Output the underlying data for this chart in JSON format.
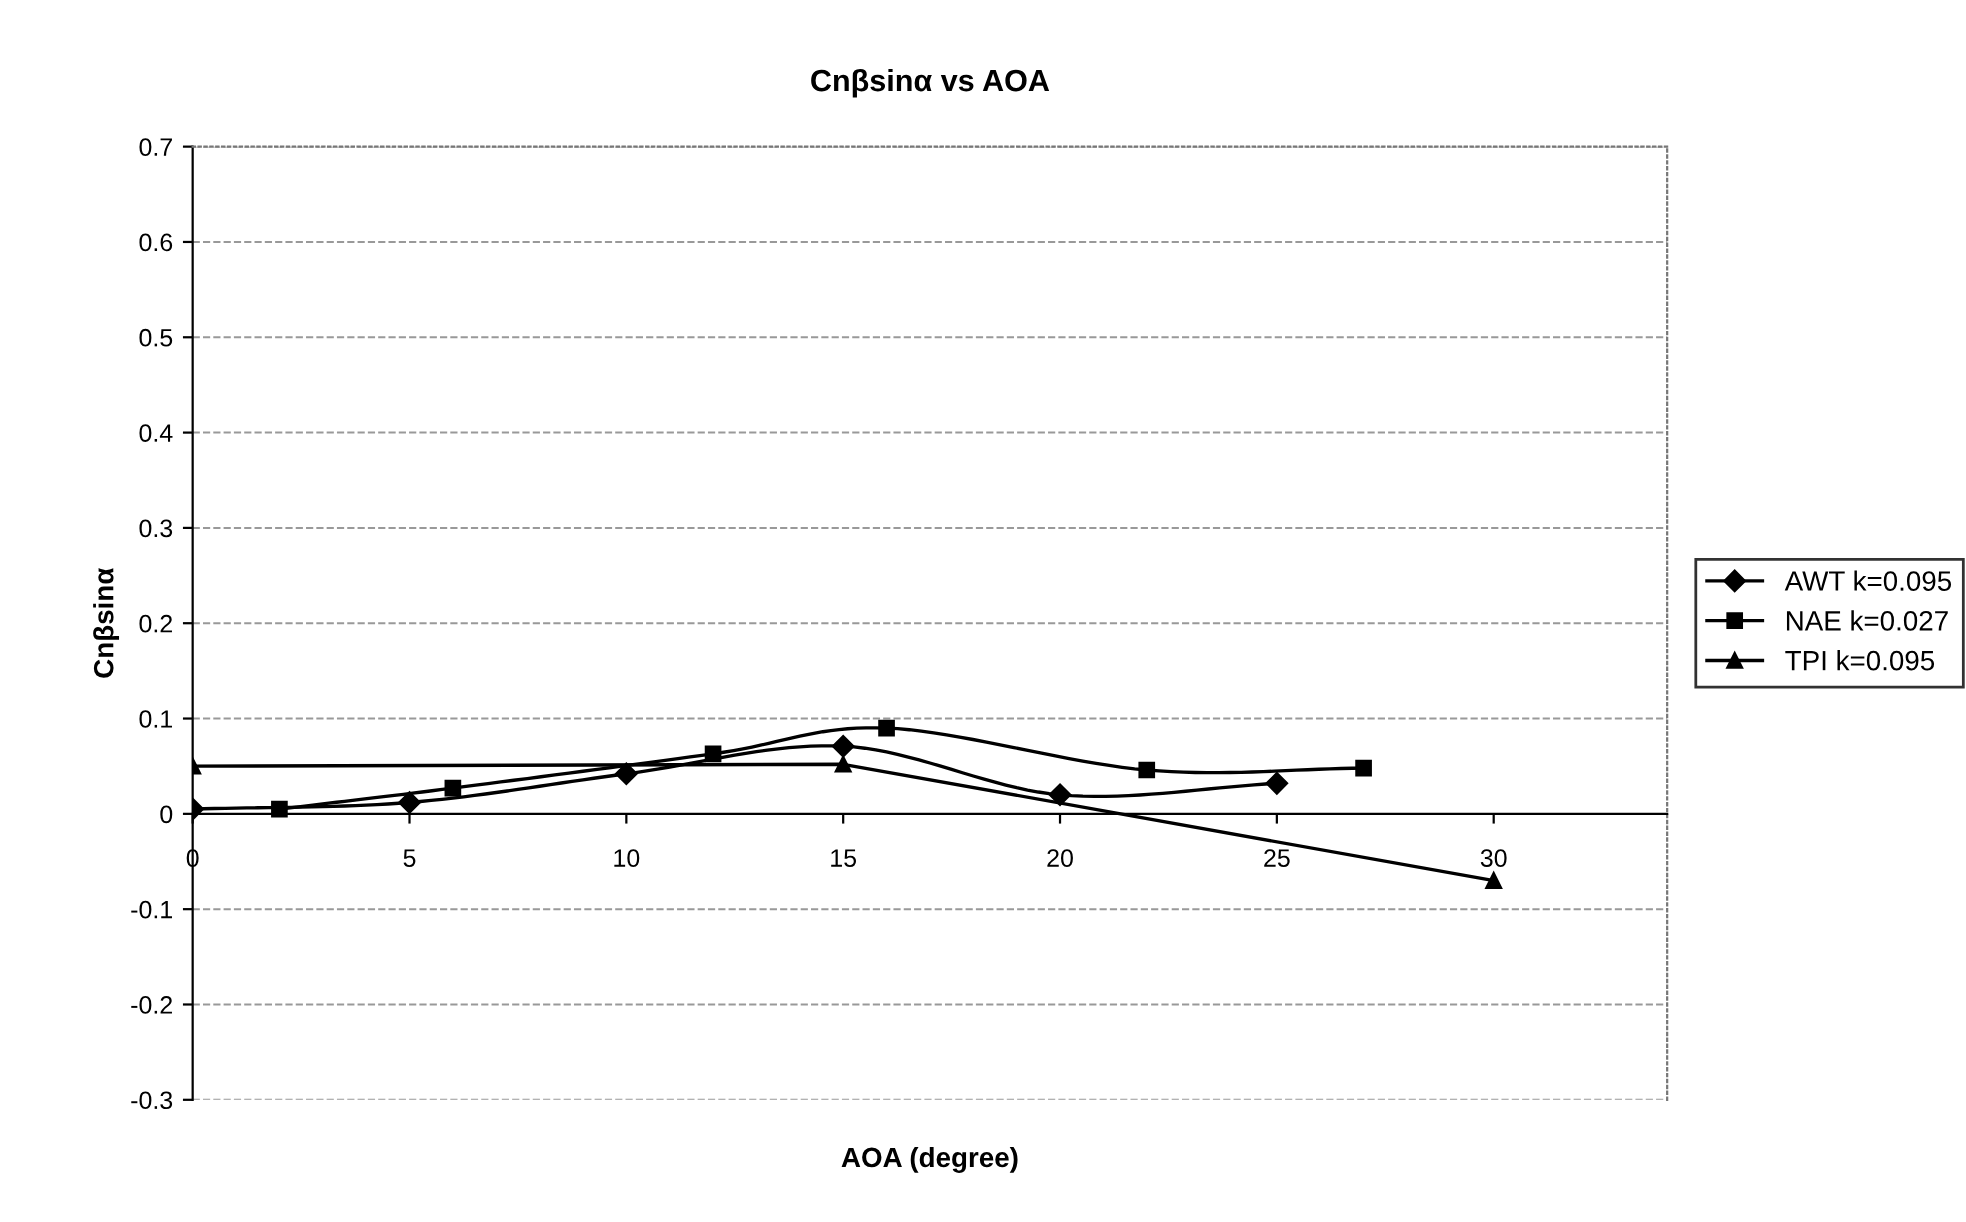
{
  "chart_data": {
    "type": "line",
    "title": "Cnβsinα vs AOA",
    "xlabel": "AOA (degree)",
    "ylabel": "Cnβsinα",
    "xlim": [
      0,
      34
    ],
    "xticks": [
      0,
      5,
      10,
      15,
      20,
      25,
      30
    ],
    "ylim": [
      -0.3,
      0.7
    ],
    "yticks": [
      -0.3,
      -0.2,
      -0.1,
      0,
      0.1,
      0.2,
      0.3,
      0.4,
      0.5,
      0.6,
      0.7
    ],
    "grid": "y",
    "legend": "right",
    "line_style": "solid",
    "series": [
      {
        "name": "AWT k=0.095",
        "color": "#000000",
        "marker": "diamond",
        "x": [
          0,
          5,
          10,
          15,
          20,
          25
        ],
        "values": [
          0.005,
          0.012,
          0.042,
          0.071,
          0.02,
          0.032
        ]
      },
      {
        "name": "NAE k=0.027",
        "color": "#000000",
        "marker": "square",
        "x": [
          2,
          6,
          12,
          16,
          22,
          27
        ],
        "values": [
          0.005,
          0.027,
          0.063,
          0.09,
          0.046,
          0.048
        ]
      },
      {
        "name": "TPI k=0.095",
        "color": "#000000",
        "marker": "triangle",
        "x": [
          0,
          15,
          30
        ],
        "values": [
          0.05,
          0.052,
          -0.07
        ]
      }
    ]
  }
}
